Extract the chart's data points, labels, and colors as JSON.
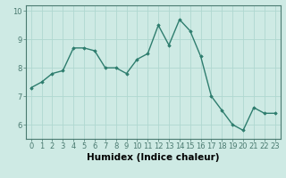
{
  "x": [
    0,
    1,
    2,
    3,
    4,
    5,
    6,
    7,
    8,
    9,
    10,
    11,
    12,
    13,
    14,
    15,
    16,
    17,
    18,
    19,
    20,
    21,
    22,
    23
  ],
  "y": [
    7.3,
    7.5,
    7.8,
    7.9,
    8.7,
    8.7,
    8.6,
    8.0,
    8.0,
    7.8,
    8.3,
    8.5,
    9.5,
    8.8,
    9.7,
    9.3,
    8.4,
    7.0,
    6.5,
    6.0,
    5.8,
    6.6,
    6.4,
    6.4
  ],
  "line_color": "#2e7d6e",
  "marker": "D",
  "marker_size": 1.8,
  "bg_color": "#ceeae4",
  "grid_color": "#b0d8d0",
  "xlabel": "Humidex (Indice chaleur)",
  "ylim": [
    5.5,
    10.2
  ],
  "xlim": [
    -0.5,
    23.5
  ],
  "yticks": [
    6,
    7,
    8,
    9,
    10
  ],
  "xticks": [
    0,
    1,
    2,
    3,
    4,
    5,
    6,
    7,
    8,
    9,
    10,
    11,
    12,
    13,
    14,
    15,
    16,
    17,
    18,
    19,
    20,
    21,
    22,
    23
  ],
  "tick_fontsize": 6,
  "xlabel_fontsize": 7.5,
  "linewidth": 1.0,
  "spine_color": "#4a7a70"
}
